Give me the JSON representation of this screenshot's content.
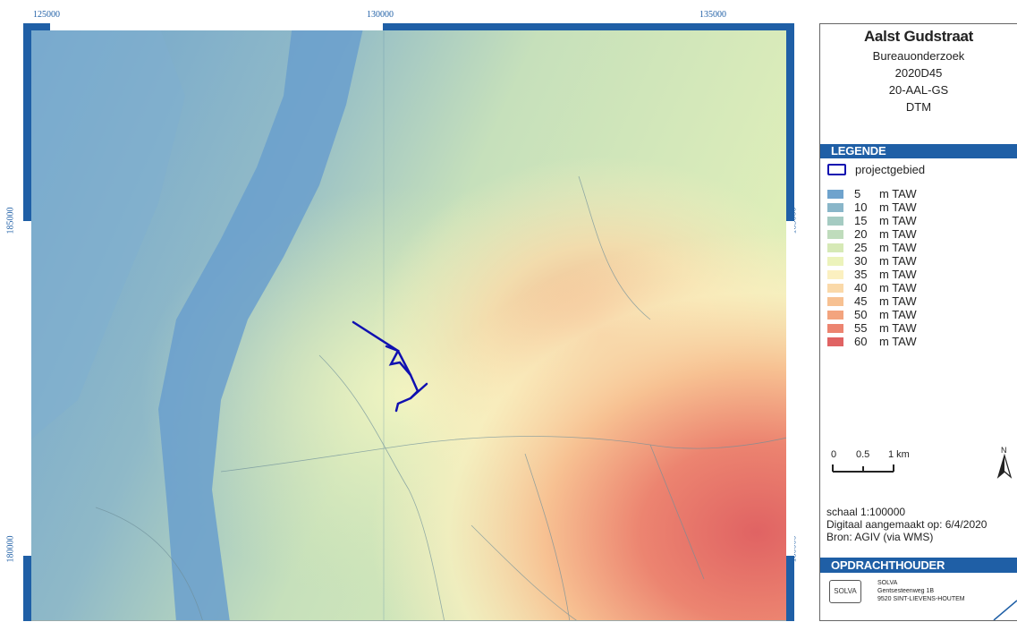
{
  "map": {
    "ticks_x": [
      "125000",
      "130000",
      "135000"
    ],
    "ticks_y": [
      "185000",
      "180000"
    ]
  },
  "legend": {
    "title": "Aalst Gudstraat",
    "subtitle_lines": [
      "Bureauonderzoek",
      "2020D45",
      "20-AAL-GS",
      "DTM"
    ],
    "heading": "LEGENDE",
    "project_label": "projectgebied",
    "project_color": "#1010b0",
    "unit": "m TAW",
    "classes": [
      {
        "value": "5",
        "color": "#6fa3cd"
      },
      {
        "value": "10",
        "color": "#89b6c9"
      },
      {
        "value": "15",
        "color": "#a5cbc2"
      },
      {
        "value": "20",
        "color": "#bfdcbc"
      },
      {
        "value": "25",
        "color": "#d6e9b6"
      },
      {
        "value": "30",
        "color": "#ecf3bb"
      },
      {
        "value": "35",
        "color": "#fbf0c0"
      },
      {
        "value": "40",
        "color": "#fad9a9"
      },
      {
        "value": "45",
        "color": "#f7c192"
      },
      {
        "value": "50",
        "color": "#f3a47e"
      },
      {
        "value": "55",
        "color": "#ec8470"
      },
      {
        "value": "60",
        "color": "#e06363"
      }
    ]
  },
  "scale": {
    "labels": [
      "0",
      "0.5",
      "1 km"
    ],
    "north": "N",
    "text": "schaal  1:100000",
    "made": "Digitaal aangemaakt op: 6/4/2020",
    "source": "Bron: AGIV (via WMS)"
  },
  "client": {
    "heading": "OPDRACHTHOUDER",
    "logo_text": "SOLVA",
    "address": [
      "SOLVA",
      "Gentsesteenweg 1B",
      "9520 SINT-LIEVENS-HOUTEM"
    ]
  },
  "colors": {
    "accent": "#1f5fa6"
  }
}
